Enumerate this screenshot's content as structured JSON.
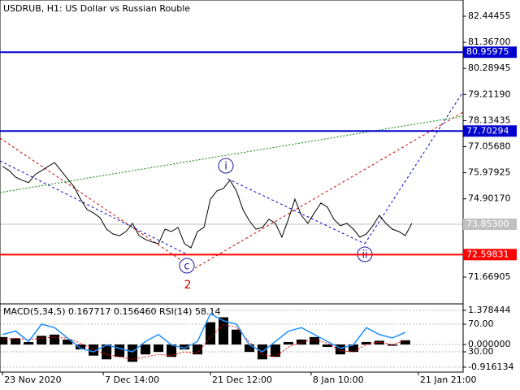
{
  "chart_data": [
    {
      "type": "line",
      "title": "USDRUB, H1: US Dollar vs Russian Rouble",
      "x": [
        0,
        1,
        2,
        3,
        4,
        5,
        6,
        7,
        8,
        9,
        10,
        11,
        12,
        13,
        14,
        15,
        16,
        17,
        18,
        19,
        20,
        21,
        22,
        23,
        24,
        25,
        26,
        27,
        28,
        29,
        30,
        31,
        32,
        33,
        34,
        35,
        36,
        37,
        38,
        39,
        40,
        41,
        42,
        43,
        44,
        45,
        46,
        47,
        48,
        49,
        50,
        51,
        52,
        53,
        54,
        55,
        56,
        57,
        58,
        59,
        60,
        61,
        62,
        63
      ],
      "series": [
        {
          "color": "#000000",
          "values": [
            76.24,
            76.07,
            75.8,
            75.67,
            75.57,
            75.9,
            76.07,
            76.24,
            76.4,
            76.07,
            75.73,
            75.4,
            74.89,
            74.46,
            74.32,
            74.12,
            73.65,
            73.45,
            73.38,
            73.55,
            73.89,
            73.38,
            73.22,
            73.12,
            73.05,
            73.65,
            73.55,
            73.72,
            73.05,
            72.88,
            73.55,
            73.72,
            74.89,
            75.23,
            75.33,
            75.67,
            75.23,
            74.46,
            73.99,
            73.65,
            73.72,
            74.06,
            73.89,
            73.32,
            74.06,
            74.89,
            74.22,
            73.89,
            74.32,
            74.73,
            74.56,
            74.06,
            73.79,
            73.89,
            73.65,
            73.32,
            73.45,
            73.79,
            74.22,
            73.89,
            73.65,
            73.55,
            73.38,
            73.89
          ]
        }
      ],
      "xlim": [
        -0.4,
        70.9
      ],
      "xticks": [
        {
          "value": 0,
          "label": "23 Nov 2020"
        },
        {
          "value": 15.5,
          "label": "7 Dec 14:00"
        },
        {
          "value": 32,
          "label": "21 Dec 12:00"
        },
        {
          "value": 47.5,
          "label": "8 Jan 10:00"
        },
        {
          "value": 64,
          "label": "21 Jan 21:00"
        }
      ],
      "ylim": [
        70.63,
        83.116
      ],
      "yticks": [
        82.44455,
        {
          "value": 81.367,
          "label": "81.36700"
        },
        80.28945,
        {
          "value": 79.2119,
          "label": "79.21190"
        },
        78.13435,
        {
          "value": 77.0568,
          "label": "77.05680"
        },
        75.97925,
        {
          "value": 74.9017,
          "label": "74.90170"
        },
        71.66905
      ],
      "levels": [
        {
          "value": 80.95975,
          "color": "#0000cc"
        },
        {
          "value": 77.70294,
          "color": "#0000cc"
        },
        {
          "value": 72.59831,
          "color": "#ff0000"
        }
      ],
      "last_price": {
        "value": 73.853,
        "label": "73.85300",
        "color": "#c0c0c0"
      },
      "annotations": [
        "i",
        "ii",
        "c",
        "2"
      ]
    },
    {
      "type": "macd_rsi",
      "title": "MACD(5,34,5) 0.167717 0.156460 RSI(14) 58.14",
      "x": [
        0,
        2,
        4,
        6,
        8,
        10,
        12,
        14,
        16,
        18,
        20,
        22,
        24,
        26,
        28,
        30,
        32,
        34,
        36,
        38,
        40,
        42,
        44,
        46,
        48,
        50,
        52,
        54,
        56,
        58,
        60,
        62
      ],
      "series": [
        {
          "color": "#000000",
          "values": [
            0.3,
            0.25,
            0.1,
            0.35,
            0.4,
            0.2,
            -0.2,
            -0.45,
            -0.6,
            -0.5,
            -0.7,
            -0.4,
            -0.3,
            -0.5,
            -0.2,
            -0.4,
            0.9,
            1.1,
            0.6,
            -0.3,
            -0.6,
            -0.5,
            0.1,
            0.2,
            0.3,
            -0.1,
            -0.4,
            -0.3,
            0.1,
            0.15,
            -0.05,
            0.17
          ]
        },
        {
          "color": "#ff0000",
          "values": [
            0.2,
            0.25,
            0.2,
            0.25,
            0.3,
            0.25,
            0.05,
            -0.2,
            -0.4,
            -0.5,
            -0.6,
            -0.5,
            -0.4,
            -0.45,
            -0.3,
            -0.35,
            0.3,
            0.8,
            0.7,
            0.1,
            -0.4,
            -0.5,
            -0.1,
            0.1,
            0.2,
            0.05,
            -0.25,
            -0.3,
            0,
            0.1,
            0,
            0.16
          ]
        },
        {
          "color": "#1e90ff",
          "axis": "y2",
          "values": [
            55,
            60,
            45,
            70,
            65,
            50,
            35,
            30,
            40,
            35,
            30,
            45,
            55,
            40,
            35,
            45,
            85,
            75,
            70,
            40,
            30,
            45,
            60,
            65,
            55,
            45,
            35,
            40,
            65,
            55,
            50,
            58.14
          ]
        }
      ],
      "xlim": [
        -0.4,
        70.9
      ],
      "ylim": [
        -1.116,
        1.575
      ],
      "yticks": [
        1.378444,
        {
          "value": 0,
          "label": "0.000000"
        },
        -0.916134
      ],
      "y2lim": [
        0.59,
        97.06
      ],
      "y2ticks": [
        {
          "value": 70,
          "label": "70.00"
        },
        {
          "value": 30,
          "label": "30.00"
        }
      ]
    }
  ]
}
